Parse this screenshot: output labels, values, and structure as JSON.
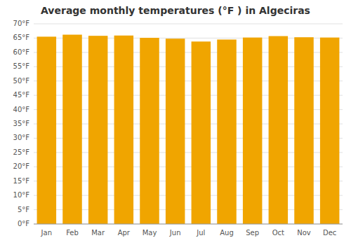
{
  "chart_data": {
    "type": "bar",
    "title": "Average monthly temperatures (°F ) in Algeciras",
    "categories": [
      "Jan",
      "Feb",
      "Mar",
      "Apr",
      "May",
      "Jun",
      "Jul",
      "Aug",
      "Sep",
      "Oct",
      "Nov",
      "Dec"
    ],
    "values": [
      65.5,
      66.2,
      65.8,
      65.9,
      65.1,
      64.8,
      63.8,
      64.5,
      65.2,
      65.7,
      65.3,
      65.2
    ],
    "color": "#F0A500",
    "ylim": [
      0,
      70
    ],
    "yticks": [
      {
        "value": 0,
        "label": "0°F"
      },
      {
        "value": 5,
        "label": "5°F"
      },
      {
        "value": 10,
        "label": "10°F"
      },
      {
        "value": 15,
        "label": "15°F"
      },
      {
        "value": 20,
        "label": "20°F"
      },
      {
        "value": 25,
        "label": "25°F"
      },
      {
        "value": 30,
        "label": "30°F"
      },
      {
        "value": 35,
        "label": "35°F"
      },
      {
        "value": 40,
        "label": "40°F"
      },
      {
        "value": 45,
        "label": "45°F"
      },
      {
        "value": 50,
        "label": "50°F"
      },
      {
        "value": 55,
        "label": "55°F"
      },
      {
        "value": 60,
        "label": "60°F"
      },
      {
        "value": 65,
        "label": "65°F"
      },
      {
        "value": 70,
        "label": "70°F"
      }
    ],
    "grid": true
  }
}
